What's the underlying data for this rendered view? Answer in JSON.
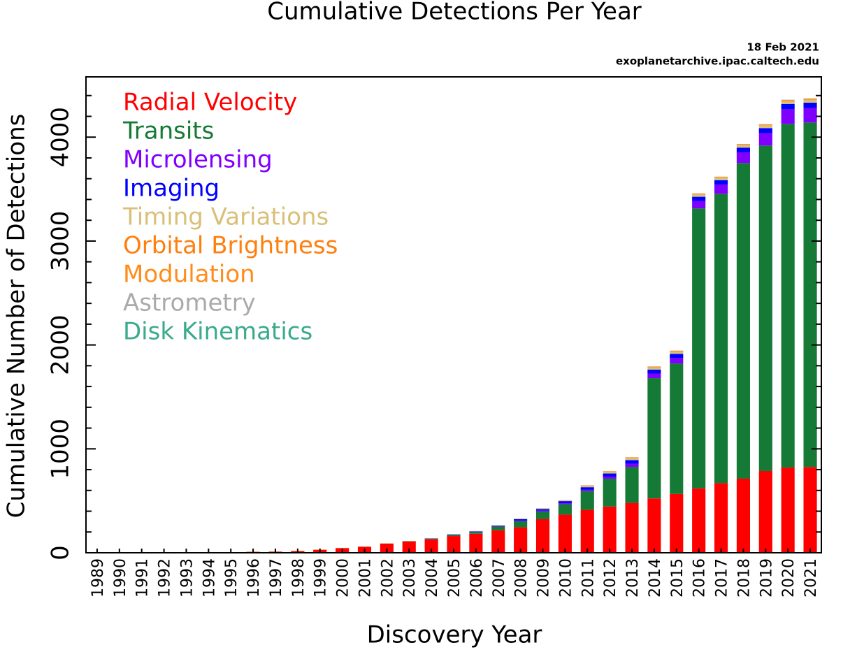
{
  "chart_data": {
    "type": "stacked_bar",
    "title": "Cumulative Detections Per Year",
    "annotations": [
      "18 Feb 2021",
      "exoplanetarchive.ipac.caltech.edu"
    ],
    "x_label": "Discovery Year",
    "y_label": "Cumulative Number of Detections",
    "categories": [
      "1989",
      "1990",
      "1991",
      "1992",
      "1993",
      "1994",
      "1995",
      "1996",
      "1997",
      "1998",
      "1999",
      "2000",
      "2001",
      "2002",
      "2003",
      "2004",
      "2005",
      "2006",
      "2007",
      "2008",
      "2009",
      "2010",
      "2011",
      "2012",
      "2013",
      "2014",
      "2015",
      "2016",
      "2017",
      "2018",
      "2019",
      "2020",
      "2021"
    ],
    "series": [
      {
        "name": "Radial Velocity",
        "color": "#ff0000",
        "values": [
          1,
          1,
          1,
          1,
          2,
          2,
          3,
          9,
          10,
          16,
          29,
          45,
          58,
          88,
          109,
          130,
          161,
          183,
          216,
          245,
          323,
          367,
          413,
          445,
          480,
          523,
          566,
          620,
          670,
          713,
          787,
          820,
          825
        ]
      },
      {
        "name": "Transits",
        "color": "#157a35",
        "values": [
          0,
          0,
          0,
          0,
          0,
          0,
          0,
          0,
          0,
          0,
          0,
          0,
          0,
          1,
          2,
          6,
          10,
          16,
          36,
          58,
          74,
          100,
          180,
          268,
          347,
          1158,
          1256,
          2694,
          2785,
          3038,
          3132,
          3308,
          3316
        ]
      },
      {
        "name": "Microlensing",
        "color": "#8000ff",
        "values": [
          0,
          0,
          0,
          0,
          0,
          0,
          0,
          0,
          0,
          0,
          0,
          0,
          0,
          0,
          0,
          1,
          3,
          4,
          4,
          7,
          8,
          10,
          13,
          20,
          30,
          44,
          52,
          70,
          87,
          103,
          120,
          140,
          140
        ]
      },
      {
        "name": "Imaging",
        "color": "#0000ff",
        "values": [
          0,
          0,
          0,
          0,
          0,
          0,
          0,
          0,
          0,
          0,
          0,
          0,
          0,
          0,
          0,
          2,
          3,
          4,
          5,
          14,
          16,
          20,
          25,
          30,
          35,
          38,
          40,
          42,
          44,
          45,
          48,
          51,
          51
        ]
      },
      {
        "name": "Timing Variations",
        "color": "#d9c078",
        "values": [
          0,
          0,
          0,
          2,
          2,
          3,
          3,
          3,
          3,
          3,
          3,
          3,
          3,
          3,
          3,
          3,
          3,
          3,
          5,
          6,
          8,
          10,
          15,
          18,
          20,
          22,
          23,
          24,
          25,
          26,
          27,
          28,
          28
        ]
      },
      {
        "name": "Orbital Brightness",
        "color": "#ff7f0e",
        "values": [
          0,
          0,
          0,
          0,
          0,
          0,
          0,
          0,
          0,
          0,
          0,
          0,
          0,
          0,
          0,
          0,
          0,
          0,
          0,
          0,
          0,
          0,
          2,
          3,
          5,
          6,
          6,
          6,
          6,
          6,
          7,
          9,
          9
        ]
      },
      {
        "name": "Modulation",
        "color": "#ff8c1a",
        "values": [
          0,
          0,
          0,
          0,
          0,
          0,
          0,
          0,
          0,
          0,
          0,
          0,
          0,
          0,
          0,
          0,
          0,
          0,
          0,
          0,
          0,
          0,
          2,
          2,
          2,
          2,
          2,
          2,
          2,
          2,
          2,
          2,
          2
        ]
      },
      {
        "name": "Astrometry",
        "color": "#aaaaaa",
        "values": [
          0,
          0,
          0,
          0,
          0,
          0,
          0,
          0,
          0,
          0,
          0,
          0,
          0,
          0,
          0,
          0,
          0,
          0,
          0,
          0,
          0,
          0,
          0,
          0,
          1,
          1,
          1,
          1,
          1,
          1,
          1,
          1,
          1
        ]
      },
      {
        "name": "Disk Kinematics",
        "color": "#3aaa8c",
        "values": [
          0,
          0,
          0,
          0,
          0,
          0,
          0,
          0,
          0,
          0,
          0,
          0,
          0,
          0,
          0,
          0,
          0,
          0,
          0,
          0,
          0,
          0,
          0,
          0,
          0,
          0,
          0,
          0,
          0,
          0,
          1,
          1,
          1
        ]
      }
    ],
    "ylim": [
      0,
      4580
    ],
    "yticks": [
      0,
      1000,
      2000,
      3000,
      4000
    ],
    "minor_yticks": [
      200,
      400,
      600,
      800,
      1200,
      1400,
      1600,
      1800,
      2200,
      2400,
      2600,
      2800,
      3200,
      3400,
      3600,
      3800,
      4200,
      4400
    ]
  }
}
